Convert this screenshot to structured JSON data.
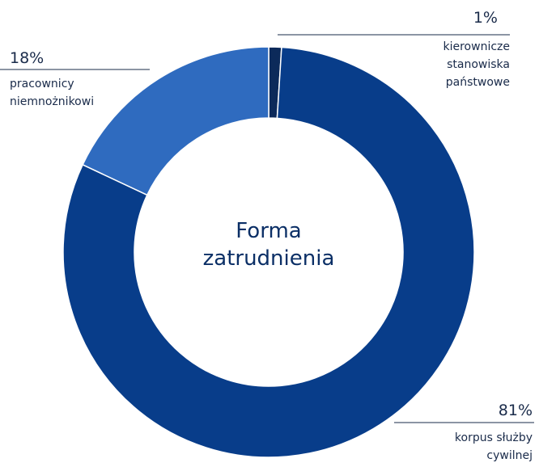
{
  "chart_data": {
    "type": "donut",
    "title": "Forma\nzatrudnienia",
    "categories": [
      "kierownicze\nstanowiska\npaństwowe",
      "korpus służby\ncywilnej",
      "pracownicy\nniemnożnikowi"
    ],
    "values": [
      1,
      81,
      18
    ],
    "value_labels": [
      "1%",
      "81%",
      "18%"
    ],
    "colors": [
      "#0c2a5a",
      "#083d8a",
      "#2f6bbf"
    ]
  }
}
